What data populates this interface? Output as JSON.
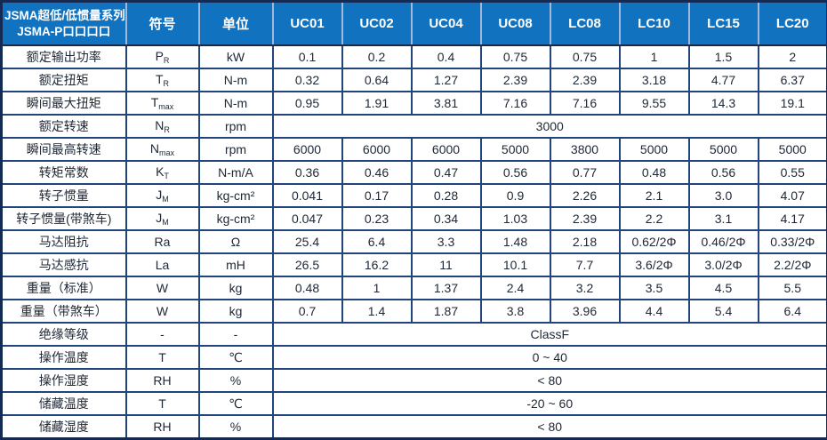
{
  "table": {
    "title_line1": "JSMA超低/低惯量系列",
    "title_line2": "JSMA-P口口口口",
    "symbol_header": "符号",
    "unit_header": "单位",
    "models": [
      "UC01",
      "UC02",
      "UC04",
      "UC08",
      "LC08",
      "LC10",
      "LC15",
      "LC20"
    ],
    "rows": [
      {
        "label": "额定输出功率",
        "sym": "P",
        "sub": "R",
        "unit": "kW",
        "values": [
          "0.1",
          "0.2",
          "0.4",
          "0.75",
          "0.75",
          "1",
          "1.5",
          "2"
        ]
      },
      {
        "label": "额定扭矩",
        "sym": "T",
        "sub": "R",
        "unit": "N-m",
        "values": [
          "0.32",
          "0.64",
          "1.27",
          "2.39",
          "2.39",
          "3.18",
          "4.77",
          "6.37"
        ]
      },
      {
        "label": "瞬间最大扭矩",
        "sym": "T",
        "sub": "max",
        "unit": "N-m",
        "values": [
          "0.95",
          "1.91",
          "3.81",
          "7.16",
          "7.16",
          "9.55",
          "14.3",
          "19.1"
        ]
      },
      {
        "label": "额定转速",
        "sym": "N",
        "sub": "R",
        "unit": "rpm",
        "merged": "3000"
      },
      {
        "label": "瞬间最高转速",
        "sym": "N",
        "sub": "max",
        "unit": "rpm",
        "values": [
          "6000",
          "6000",
          "6000",
          "5000",
          "3800",
          "5000",
          "5000",
          "5000"
        ]
      },
      {
        "label": "转矩常数",
        "sym": "K",
        "sub": "T",
        "unit": "N-m/A",
        "values": [
          "0.36",
          "0.46",
          "0.47",
          "0.56",
          "0.77",
          "0.48",
          "0.56",
          "0.55"
        ]
      },
      {
        "label": "转子惯量",
        "sym": "J",
        "sub": "M",
        "unit": "kg-cm²",
        "values": [
          "0.041",
          "0.17",
          "0.28",
          "0.9",
          "2.26",
          "2.1",
          "3.0",
          "4.07"
        ]
      },
      {
        "label": "转子惯量(带煞车)",
        "sym": "J",
        "sub": "M",
        "unit": "kg-cm²",
        "values": [
          "0.047",
          "0.23",
          "0.34",
          "1.03",
          "2.39",
          "2.2",
          "3.1",
          "4.17"
        ]
      },
      {
        "label": "马达阻抗",
        "sym": "Ra",
        "sub": "",
        "unit": "Ω",
        "values": [
          "25.4",
          "6.4",
          "3.3",
          "1.48",
          "2.18",
          "0.62/2Φ",
          "0.46/2Φ",
          "0.33/2Φ"
        ]
      },
      {
        "label": "马达感抗",
        "sym": "La",
        "sub": "",
        "unit": "mH",
        "values": [
          "26.5",
          "16.2",
          "11",
          "10.1",
          "7.7",
          "3.6/2Φ",
          "3.0/2Φ",
          "2.2/2Φ"
        ]
      },
      {
        "label": "重量（标准）",
        "sym": "W",
        "sub": "",
        "unit": "kg",
        "values": [
          "0.48",
          "1",
          "1.37",
          "2.4",
          "3.2",
          "3.5",
          "4.5",
          "5.5"
        ]
      },
      {
        "label": "重量（带煞车）",
        "sym": "W",
        "sub": "",
        "unit": "kg",
        "values": [
          "0.7",
          "1.4",
          "1.87",
          "3.8",
          "3.96",
          "4.4",
          "5.4",
          "6.4"
        ]
      },
      {
        "label": "绝缘等级",
        "sym": "-",
        "sub": "",
        "unit": "-",
        "merged": "ClassF"
      },
      {
        "label": "操作温度",
        "sym": "T",
        "sub": "",
        "unit": "℃",
        "merged": "0 ~ 40"
      },
      {
        "label": "操作湿度",
        "sym": "RH",
        "sub": "",
        "unit": "%",
        "merged": "< 80"
      },
      {
        "label": "储藏温度",
        "sym": "T",
        "sub": "",
        "unit": "℃",
        "merged": "-20 ~ 60"
      },
      {
        "label": "储藏湿度",
        "sym": "RH",
        "sub": "",
        "unit": "%",
        "merged": "< 80"
      }
    ],
    "colors": {
      "header_bg": "#1173BF",
      "header_text": "#FFFFFF",
      "outer_border": "#152A52",
      "grid_line": "#20457A",
      "header_separator": "#A3B8D6",
      "body_text": "#1E2735"
    }
  }
}
